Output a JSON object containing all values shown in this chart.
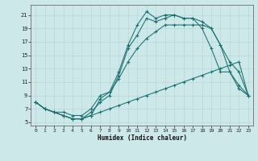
{
  "xlabel": "Humidex (Indice chaleur)",
  "bg_color": "#cce8e8",
  "grid_color": "#b8d8d8",
  "line_color": "#1a7070",
  "xlim": [
    -0.5,
    23.5
  ],
  "ylim": [
    4.5,
    22.5
  ],
  "xticks": [
    0,
    1,
    2,
    3,
    4,
    5,
    6,
    7,
    8,
    9,
    10,
    11,
    12,
    13,
    14,
    15,
    16,
    17,
    18,
    19,
    20,
    21,
    22,
    23
  ],
  "yticks": [
    5,
    7,
    9,
    11,
    13,
    15,
    17,
    19,
    21
  ],
  "curves": [
    {
      "x": [
        0,
        1,
        2,
        3,
        4,
        5,
        6,
        7,
        8,
        9,
        10,
        11,
        12,
        13,
        14,
        15,
        16,
        17,
        18,
        19,
        20,
        21,
        22,
        23
      ],
      "y": [
        8,
        7,
        6.5,
        6,
        5.5,
        5.5,
        6.0,
        6.5,
        7.0,
        7.5,
        8.0,
        8.5,
        9.0,
        9.5,
        10.0,
        10.5,
        11.0,
        11.5,
        12.0,
        12.5,
        13.0,
        13.5,
        14.0,
        9.0
      ]
    },
    {
      "x": [
        0,
        1,
        2,
        3,
        4,
        5,
        6,
        7,
        8,
        9,
        10,
        11,
        12,
        13,
        14,
        15,
        16,
        17,
        18,
        19,
        20,
        21,
        22,
        23
      ],
      "y": [
        8,
        7,
        6.5,
        6.5,
        6.0,
        6.0,
        7.0,
        9.0,
        9.5,
        11.5,
        14.0,
        16.0,
        17.5,
        18.5,
        19.5,
        19.5,
        19.5,
        19.5,
        19.5,
        19.0,
        16.5,
        14.0,
        12.5,
        9.0
      ]
    },
    {
      "x": [
        0,
        1,
        2,
        3,
        4,
        5,
        6,
        7,
        8,
        9,
        10,
        11,
        12,
        13,
        14,
        15,
        16,
        17,
        18,
        19,
        20,
        21,
        22,
        23
      ],
      "y": [
        8,
        7,
        6.5,
        6.0,
        5.5,
        5.5,
        6.5,
        8.0,
        9.0,
        12.0,
        16.0,
        18.0,
        20.5,
        20.0,
        20.5,
        21.0,
        20.5,
        20.5,
        20.0,
        19.0,
        16.5,
        12.5,
        10.5,
        9.0
      ]
    },
    {
      "x": [
        0,
        1,
        2,
        3,
        4,
        5,
        6,
        7,
        8,
        9,
        10,
        11,
        12,
        13,
        14,
        15,
        16,
        17,
        18,
        19,
        20,
        21,
        22,
        23
      ],
      "y": [
        8,
        7,
        6.5,
        6.0,
        5.5,
        5.5,
        6.0,
        8.5,
        9.5,
        12.5,
        16.5,
        19.5,
        21.5,
        20.5,
        21.0,
        21.0,
        20.5,
        20.5,
        19.0,
        16.0,
        12.5,
        12.5,
        10.0,
        9.0
      ]
    }
  ]
}
